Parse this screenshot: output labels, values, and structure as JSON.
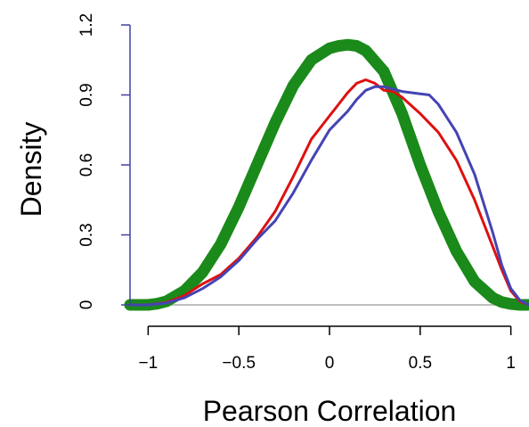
{
  "chart_data": {
    "type": "line",
    "title": "",
    "xlabel": "Pearson Correlation",
    "ylabel": "Density",
    "xlim": [
      -1.1,
      1.1
    ],
    "ylim": [
      0,
      1.2
    ],
    "xticks": [
      -1,
      -0.5,
      0,
      0.5,
      1
    ],
    "xtick_labels": [
      "−1",
      "−0.5",
      "0",
      "0.5",
      "1"
    ],
    "yticks": [
      0,
      0.3,
      0.6,
      0.9,
      1.2
    ],
    "ytick_labels": [
      "0",
      "0.3",
      "0.6",
      "0.9",
      "1.2"
    ],
    "grid": false,
    "legend": "none",
    "colors": {
      "green": "#1a8a1a",
      "red": "#dd1111",
      "blue": "#4444b4",
      "axis": "#4040a0",
      "baseline": "#aaaaaa"
    },
    "series": [
      {
        "color": "#1a8a1a",
        "style": "thick-band",
        "x": [
          -1.1,
          -1.0,
          -0.95,
          -0.9,
          -0.8,
          -0.7,
          -0.6,
          -0.5,
          -0.4,
          -0.3,
          -0.2,
          -0.1,
          0.0,
          0.05,
          0.1,
          0.15,
          0.2,
          0.3,
          0.4,
          0.5,
          0.6,
          0.7,
          0.8,
          0.9,
          0.95,
          1.0,
          1.05,
          1.1
        ],
        "y": [
          0.0,
          0.0,
          0.005,
          0.015,
          0.06,
          0.14,
          0.26,
          0.42,
          0.6,
          0.78,
          0.94,
          1.05,
          1.1,
          1.11,
          1.115,
          1.11,
          1.09,
          1.0,
          0.82,
          0.6,
          0.4,
          0.23,
          0.1,
          0.03,
          0.012,
          0.004,
          0.0,
          0.0
        ]
      },
      {
        "color": "#dd1111",
        "style": "line",
        "x": [
          -1.1,
          -1.0,
          -0.9,
          -0.8,
          -0.7,
          -0.6,
          -0.5,
          -0.4,
          -0.3,
          -0.2,
          -0.1,
          0.0,
          0.05,
          0.1,
          0.15,
          0.2,
          0.25,
          0.3,
          0.35,
          0.4,
          0.5,
          0.6,
          0.7,
          0.8,
          0.9,
          0.95,
          1.0,
          1.05,
          1.1
        ],
        "y": [
          0.0,
          0.0,
          0.01,
          0.04,
          0.09,
          0.13,
          0.2,
          0.29,
          0.4,
          0.55,
          0.71,
          0.81,
          0.86,
          0.91,
          0.95,
          0.965,
          0.95,
          0.92,
          0.915,
          0.89,
          0.82,
          0.74,
          0.62,
          0.45,
          0.25,
          0.15,
          0.06,
          0.015,
          0.0
        ]
      },
      {
        "color": "#4444b4",
        "style": "line",
        "x": [
          -1.1,
          -1.0,
          -0.9,
          -0.8,
          -0.7,
          -0.6,
          -0.5,
          -0.4,
          -0.3,
          -0.2,
          -0.1,
          0.0,
          0.05,
          0.1,
          0.15,
          0.2,
          0.25,
          0.3,
          0.35,
          0.4,
          0.5,
          0.55,
          0.6,
          0.7,
          0.8,
          0.9,
          0.95,
          1.0,
          1.05,
          1.1
        ],
        "y": [
          0.0,
          0.0,
          0.008,
          0.03,
          0.07,
          0.12,
          0.19,
          0.28,
          0.36,
          0.48,
          0.62,
          0.75,
          0.79,
          0.83,
          0.88,
          0.92,
          0.935,
          0.935,
          0.925,
          0.915,
          0.905,
          0.9,
          0.86,
          0.74,
          0.56,
          0.31,
          0.17,
          0.07,
          0.02,
          0.0
        ]
      }
    ]
  }
}
